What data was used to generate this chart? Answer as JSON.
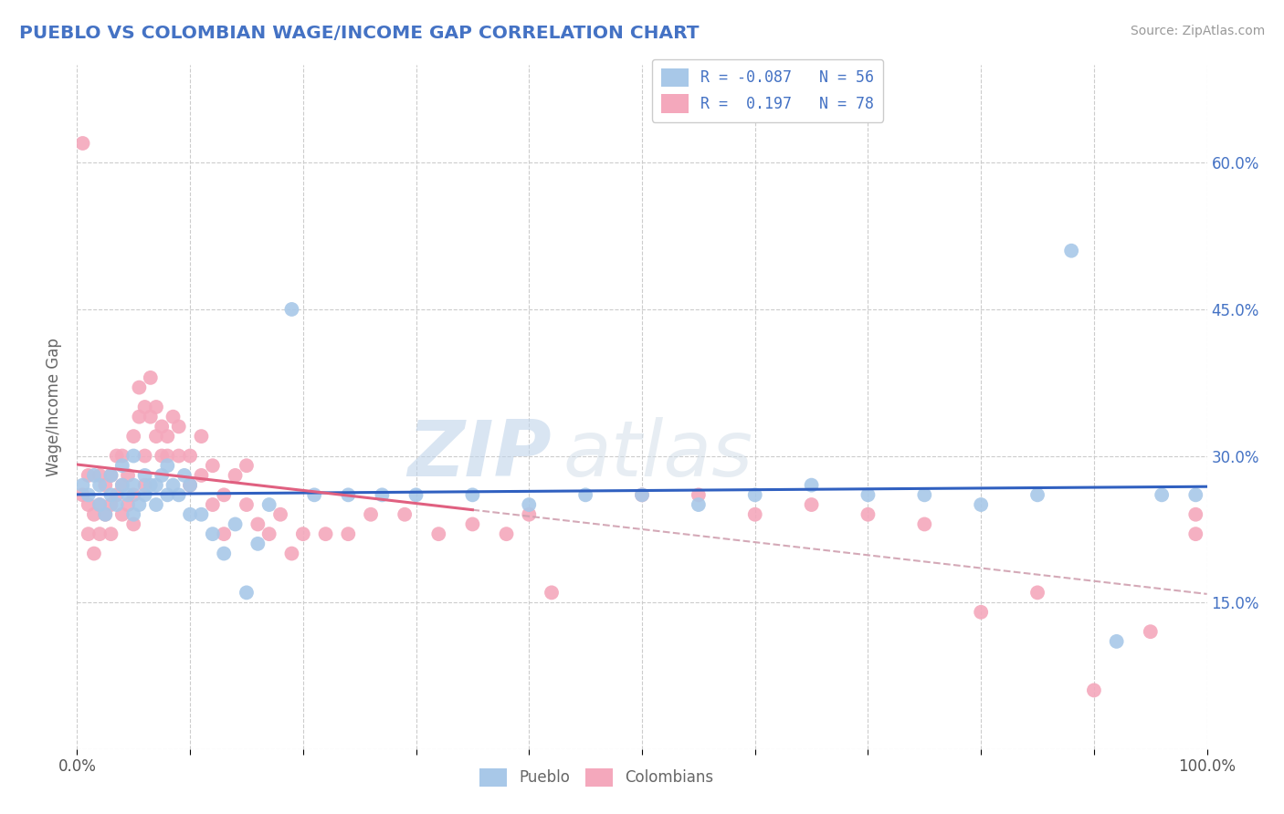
{
  "title": "PUEBLO VS COLOMBIAN WAGE/INCOME GAP CORRELATION CHART",
  "source": "Source: ZipAtlas.com",
  "ylabel": "Wage/Income Gap",
  "xlim": [
    0.0,
    1.0
  ],
  "ylim": [
    0.0,
    0.7
  ],
  "yticks": [
    0.0,
    0.15,
    0.3,
    0.45,
    0.6
  ],
  "ytick_labels": [
    "",
    "15.0%",
    "30.0%",
    "45.0%",
    "60.0%"
  ],
  "pueblo_color": "#a8c8e8",
  "colombian_color": "#f4a8bc",
  "pueblo_R": -0.087,
  "pueblo_N": 56,
  "colombian_R": 0.197,
  "colombian_N": 78,
  "legend_label1": "Pueblo",
  "legend_label2": "Colombians",
  "pueblo_line_color": "#3060c0",
  "colombian_line_color": "#e06080",
  "colombian_dashed_color": "#d0a0b0",
  "watermark_zip": "ZIP",
  "watermark_atlas": "atlas",
  "background_color": "#ffffff",
  "grid_color": "#cccccc",
  "title_color": "#4472c4",
  "pueblo_x": [
    0.005,
    0.01,
    0.015,
    0.02,
    0.02,
    0.025,
    0.03,
    0.03,
    0.035,
    0.04,
    0.04,
    0.045,
    0.05,
    0.05,
    0.05,
    0.055,
    0.06,
    0.06,
    0.065,
    0.07,
    0.07,
    0.075,
    0.08,
    0.08,
    0.085,
    0.09,
    0.095,
    0.1,
    0.1,
    0.11,
    0.12,
    0.13,
    0.14,
    0.15,
    0.16,
    0.17,
    0.19,
    0.21,
    0.24,
    0.27,
    0.3,
    0.35,
    0.4,
    0.45,
    0.5,
    0.55,
    0.6,
    0.65,
    0.7,
    0.75,
    0.8,
    0.85,
    0.88,
    0.92,
    0.96,
    0.99
  ],
  "pueblo_y": [
    0.27,
    0.26,
    0.28,
    0.25,
    0.27,
    0.24,
    0.26,
    0.28,
    0.25,
    0.27,
    0.29,
    0.26,
    0.24,
    0.27,
    0.3,
    0.25,
    0.26,
    0.28,
    0.27,
    0.25,
    0.27,
    0.28,
    0.26,
    0.29,
    0.27,
    0.26,
    0.28,
    0.24,
    0.27,
    0.24,
    0.22,
    0.2,
    0.23,
    0.16,
    0.21,
    0.25,
    0.45,
    0.26,
    0.26,
    0.26,
    0.26,
    0.26,
    0.25,
    0.26,
    0.26,
    0.25,
    0.26,
    0.27,
    0.26,
    0.26,
    0.25,
    0.26,
    0.51,
    0.11,
    0.26,
    0.26
  ],
  "colombian_x": [
    0.005,
    0.01,
    0.01,
    0.01,
    0.015,
    0.015,
    0.02,
    0.02,
    0.02,
    0.025,
    0.025,
    0.03,
    0.03,
    0.03,
    0.035,
    0.035,
    0.04,
    0.04,
    0.04,
    0.045,
    0.045,
    0.05,
    0.05,
    0.05,
    0.055,
    0.055,
    0.06,
    0.06,
    0.06,
    0.065,
    0.065,
    0.07,
    0.07,
    0.075,
    0.075,
    0.08,
    0.08,
    0.085,
    0.09,
    0.09,
    0.1,
    0.1,
    0.11,
    0.11,
    0.12,
    0.12,
    0.13,
    0.13,
    0.14,
    0.15,
    0.15,
    0.16,
    0.17,
    0.18,
    0.19,
    0.2,
    0.22,
    0.24,
    0.26,
    0.29,
    0.32,
    0.35,
    0.38,
    0.4,
    0.42,
    0.5,
    0.55,
    0.6,
    0.65,
    0.7,
    0.75,
    0.8,
    0.85,
    0.9,
    0.95,
    0.99,
    0.005,
    0.99
  ],
  "colombian_y": [
    0.26,
    0.22,
    0.25,
    0.28,
    0.2,
    0.24,
    0.22,
    0.25,
    0.28,
    0.24,
    0.27,
    0.22,
    0.25,
    0.28,
    0.26,
    0.3,
    0.24,
    0.27,
    0.3,
    0.25,
    0.28,
    0.23,
    0.26,
    0.32,
    0.34,
    0.37,
    0.27,
    0.3,
    0.35,
    0.38,
    0.34,
    0.32,
    0.35,
    0.3,
    0.33,
    0.3,
    0.32,
    0.34,
    0.3,
    0.33,
    0.27,
    0.3,
    0.28,
    0.32,
    0.25,
    0.29,
    0.22,
    0.26,
    0.28,
    0.25,
    0.29,
    0.23,
    0.22,
    0.24,
    0.2,
    0.22,
    0.22,
    0.22,
    0.24,
    0.24,
    0.22,
    0.23,
    0.22,
    0.24,
    0.16,
    0.26,
    0.26,
    0.24,
    0.25,
    0.24,
    0.23,
    0.14,
    0.16,
    0.06,
    0.12,
    0.24,
    0.62,
    0.22
  ]
}
